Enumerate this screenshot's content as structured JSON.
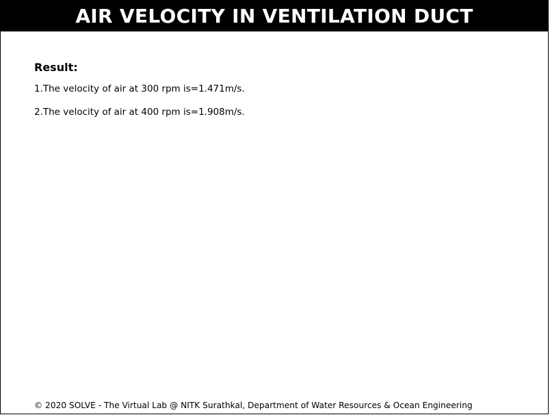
{
  "header": {
    "title": "AIR VELOCITY IN VENTILATION DUCT"
  },
  "result": {
    "heading": "Result:",
    "lines": [
      "1.The velocity of air at 300 rpm is=1.471m/s.",
      "2.The velocity of air at 400 rpm is=1.908m/s."
    ]
  },
  "footer": {
    "text": "© 2020 SOLVE - The Virtual Lab @ NITK Surathkal, Department of Water Resources & Ocean Engineering"
  },
  "colors": {
    "title_bar_background": "#000000",
    "title_text": "#ffffff",
    "page_background": "#ffffff",
    "body_text": "#000000"
  }
}
